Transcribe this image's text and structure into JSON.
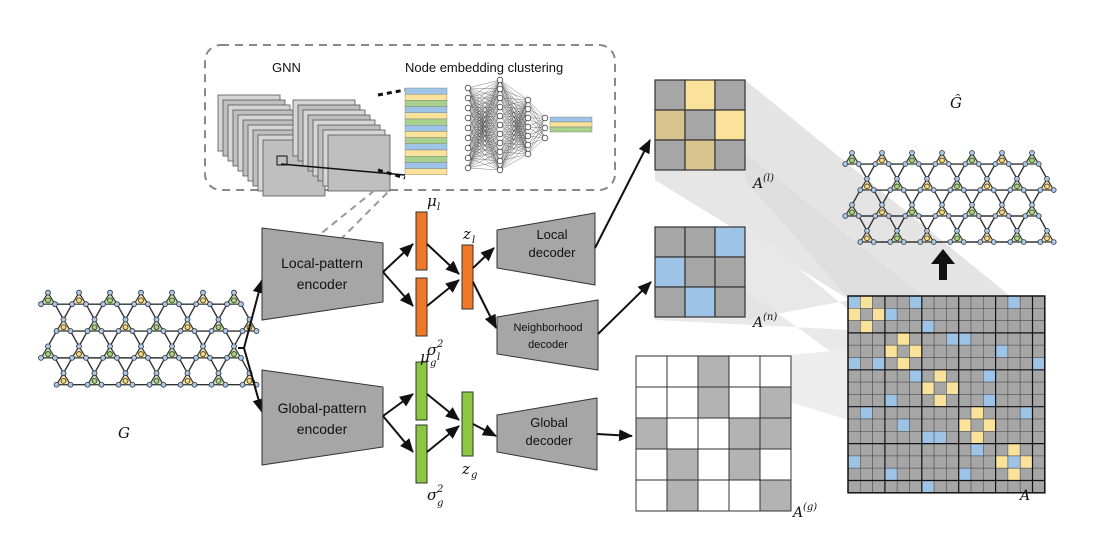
{
  "inset": {
    "gnn_label": "GNN",
    "clustering_label": "Node embedding clustering"
  },
  "graphs": {
    "input_label": "G",
    "output_label": "Ĝ"
  },
  "encoders": {
    "local": [
      "Local-pattern",
      "encoder"
    ],
    "global": [
      "Global-pattern",
      "encoder"
    ]
  },
  "decoders": {
    "local": [
      "Local",
      "decoder"
    ],
    "neighborhood": [
      "Neighborhood",
      "decoder"
    ],
    "global": [
      "Global",
      "decoder"
    ]
  },
  "latent": {
    "mu_l": "μ",
    "mu_l_sub": "l",
    "sigma_l": "σ",
    "sigma_l_sub": "l",
    "sigma_l_sup": "2",
    "z_l": "z",
    "z_l_sub": "l",
    "mu_g": "μ",
    "mu_g_sub": "g",
    "sigma_g": "σ",
    "sigma_g_sub": "g",
    "sigma_g_sup": "2",
    "z_g": "z",
    "z_g_sub": "g"
  },
  "matrices": {
    "local_label": "A",
    "local_sup": "(l)",
    "neighborhood_label": "A",
    "neighborhood_sup": "(n)",
    "global_label": "A",
    "global_sup": "(g)",
    "full_label": "A"
  },
  "colors": {
    "gray": "#a6a6a6",
    "dark_gray": "#8c8c8c",
    "orange": "#f07826",
    "green": "#8dc63f",
    "yellow": "#fbe29a",
    "tan": "#d9c48f",
    "blue": "#9dc3e6",
    "node_blue": "#a9c9ec",
    "node_yellow": "#f6d77a",
    "node_green": "#a6d47b"
  }
}
